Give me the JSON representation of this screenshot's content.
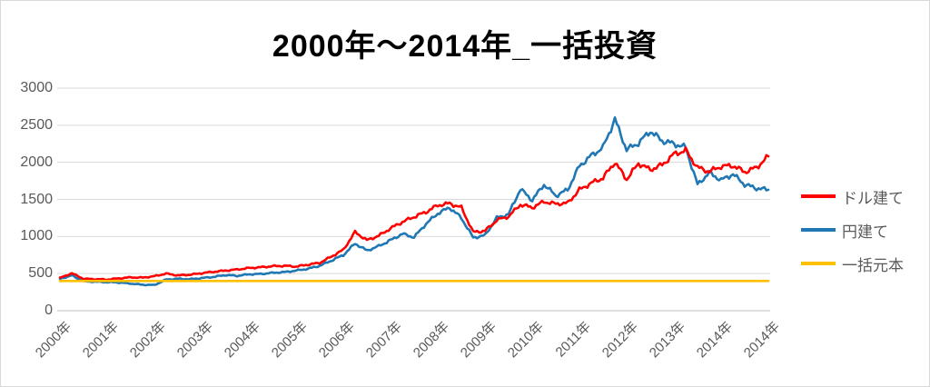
{
  "chart_data": {
    "type": "line",
    "title": "2000年～2014年_一括投資",
    "xlabel": "",
    "ylabel": "",
    "xlim": [
      2000,
      2015
    ],
    "ylim": [
      0,
      3000
    ],
    "grid": true,
    "legend_position": "right",
    "y_ticks": [
      0,
      500,
      1000,
      1500,
      2000,
      2500,
      3000
    ],
    "x_tick_labels": [
      "2000年",
      "2001年",
      "2002年",
      "2003年",
      "2004年",
      "2005年",
      "2006年",
      "2007年",
      "2008年",
      "2009年",
      "2010年",
      "2011年",
      "2012年",
      "2013年",
      "2014年",
      "2014年"
    ],
    "x_start_year": 2000,
    "x_step_years": 0.25,
    "series": [
      {
        "name": "ドル建て",
        "color": "#FF0000",
        "values": [
          440,
          505,
          430,
          425,
          420,
          435,
          450,
          445,
          465,
          500,
          475,
          485,
          505,
          525,
          540,
          555,
          575,
          585,
          600,
          605,
          595,
          620,
          645,
          730,
          820,
          1060,
          950,
          1010,
          1110,
          1195,
          1265,
          1330,
          1420,
          1445,
          1390,
          1060,
          1075,
          1220,
          1270,
          1430,
          1390,
          1470,
          1440,
          1450,
          1630,
          1720,
          1790,
          2000,
          1770,
          1985,
          1900,
          1965,
          2110,
          2160,
          1930,
          1875,
          1945,
          1955,
          1870,
          1930,
          2080
        ]
      },
      {
        "name": "円建て",
        "color": "#1F77B4",
        "values": [
          430,
          475,
          395,
          390,
          385,
          380,
          365,
          350,
          345,
          420,
          430,
          425,
          440,
          455,
          480,
          470,
          490,
          495,
          510,
          520,
          540,
          565,
          605,
          675,
          750,
          905,
          810,
          870,
          950,
          1035,
          990,
          1170,
          1310,
          1390,
          1250,
          985,
          1015,
          1250,
          1300,
          1640,
          1490,
          1700,
          1550,
          1630,
          1950,
          2090,
          2200,
          2580,
          2170,
          2260,
          2420,
          2290,
          2250,
          2200,
          1700,
          1860,
          1760,
          1840,
          1700,
          1650,
          1630
        ]
      },
      {
        "name": "一括元本",
        "color": "#FFC000",
        "constant_value": 400
      }
    ],
    "colors": {
      "gridline": "#D9D9D9",
      "axis_line": "#BFBFBF",
      "tick_label": "#595959",
      "title": "#000000"
    }
  }
}
